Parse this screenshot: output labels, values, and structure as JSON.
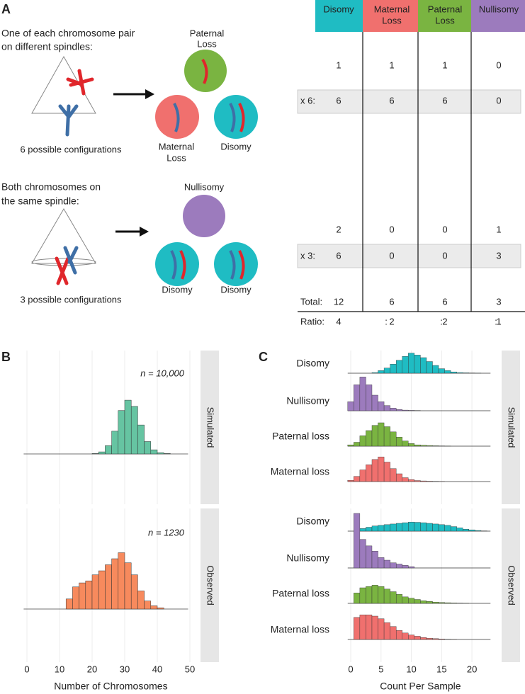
{
  "diagram": {
    "panel_label": "A",
    "row1_text": [
      "One of each chromosome pair",
      "on different spindles:"
    ],
    "row1_configs": "6 possible configurations",
    "row1_circles": [
      [
        "Paternal",
        "Loss"
      ],
      [
        "Maternal",
        "Loss"
      ],
      [
        "Disomy"
      ]
    ],
    "row2_text": [
      "Both chromosomes on",
      "the same spindle:"
    ],
    "row2_configs": "3 possible configurations",
    "row2_circles": [
      [
        "Nullisomy"
      ],
      [
        "Disomy"
      ],
      [
        "Disomy"
      ]
    ]
  },
  "table": {
    "headers": [
      [
        "Disomy"
      ],
      [
        "Maternal",
        "Loss"
      ],
      [
        "Paternal",
        "Loss"
      ],
      [
        "Nullisomy"
      ]
    ],
    "header_colors": [
      "#1fbcc3",
      "#f0706e",
      "#7ab441",
      "#9c7bbd"
    ],
    "rows": [
      [
        null,
        1,
        1,
        1,
        0
      ],
      [
        "x 6:",
        6,
        6,
        6,
        0
      ],
      [
        null,
        2,
        0,
        0,
        1
      ],
      [
        "x 3:",
        6,
        0,
        0,
        3
      ],
      [
        "Total:",
        12,
        6,
        6,
        3
      ],
      [
        "Ratio:",
        4,
        2,
        2,
        1
      ]
    ],
    "ratio_separator": ":"
  },
  "chart_data": [
    {
      "type": "histogram",
      "panel_label": "B",
      "xlabel": "Number of Chromosomes",
      "xlim": [
        -1,
        52.5
      ],
      "xticks": [
        0,
        10,
        20,
        30,
        40,
        50
      ],
      "grid": true,
      "facets": [
        {
          "label": "Simulated",
          "annotation": "n = 10,000",
          "color": "#66c4a2",
          "ylim": [
            0,
            5000
          ],
          "bins": [
            20,
            22,
            24,
            26,
            28,
            30,
            32,
            34,
            36,
            38,
            40,
            42,
            44
          ],
          "values": [
            20,
            100,
            400,
            1100,
            2100,
            2600,
            2300,
            1400,
            600,
            200,
            60,
            20
          ]
        },
        {
          "label": "Observed",
          "annotation": "n = 1230",
          "color": "#f78a5d",
          "ylim": [
            0,
            250
          ],
          "bins": [
            12,
            14,
            16,
            18,
            20,
            22,
            24,
            26,
            28,
            30,
            32,
            34,
            36,
            38,
            40,
            42
          ],
          "values": [
            25,
            55,
            65,
            70,
            85,
            95,
            110,
            125,
            140,
            115,
            85,
            45,
            20,
            8,
            3
          ]
        }
      ]
    },
    {
      "type": "ridgeline",
      "panel_label": "C",
      "xlabel": "Count Per Sample",
      "xlim": [
        -1,
        24
      ],
      "xticks": [
        0,
        5,
        10,
        15,
        20
      ],
      "ylim": [
        0,
        0.3
      ],
      "grid": true,
      "bins": [
        -0.5,
        0.5,
        1.5,
        2.5,
        3.5,
        4.5,
        5.5,
        6.5,
        7.5,
        8.5,
        9.5,
        10.5,
        11.5,
        12.5,
        13.5,
        14.5,
        15.5,
        16.5,
        17.5,
        18.5,
        19.5,
        20.5,
        21.5,
        22.5
      ],
      "facets": [
        {
          "label": "Simulated",
          "series": [
            {
              "name": "Disomy",
              "color": "#1fbcc3",
              "values": [
                0,
                0,
                0,
                0,
                0.005,
                0.02,
                0.04,
                0.07,
                0.1,
                0.13,
                0.155,
                0.14,
                0.12,
                0.09,
                0.06,
                0.035,
                0.02,
                0.01,
                0.005,
                0.003,
                0.002,
                0.001,
                0
              ]
            },
            {
              "name": "Nullisomy",
              "color": "#9c7bbd",
              "values": [
                0.07,
                0.2,
                0.26,
                0.2,
                0.12,
                0.07,
                0.04,
                0.02,
                0.01,
                0.005,
                0.003,
                0.002,
                0,
                0,
                0,
                0,
                0,
                0,
                0,
                0,
                0,
                0,
                0
              ]
            },
            {
              "name": "Paternal loss",
              "color": "#7ab441",
              "values": [
                0.01,
                0.03,
                0.08,
                0.12,
                0.16,
                0.18,
                0.15,
                0.11,
                0.07,
                0.04,
                0.02,
                0.01,
                0.007,
                0.005,
                0.003,
                0.002,
                0.001,
                0,
                0,
                0,
                0,
                0,
                0
              ]
            },
            {
              "name": "Maternal loss",
              "color": "#f0706e",
              "values": [
                0.01,
                0.04,
                0.09,
                0.13,
                0.17,
                0.19,
                0.15,
                0.1,
                0.06,
                0.03,
                0.015,
                0.008,
                0.005,
                0.003,
                0.002,
                0.001,
                0,
                0,
                0,
                0,
                0,
                0,
                0
              ]
            }
          ]
        },
        {
          "label": "Observed",
          "series": [
            {
              "name": "Disomy",
              "color": "#1fbcc3",
              "values": [
                0,
                0,
                0.02,
                0.03,
                0.04,
                0.045,
                0.05,
                0.055,
                0.06,
                0.065,
                0.07,
                0.068,
                0.065,
                0.06,
                0.055,
                0.05,
                0.045,
                0.035,
                0.025,
                0.015,
                0.01,
                0.005,
                0.002
              ]
            },
            {
              "name": "Nullisomy",
              "color": "#9c7bbd",
              "values": [
                0,
                0.42,
                0.22,
                0.17,
                0.13,
                0.08,
                0.06,
                0.04,
                0.03,
                0.02,
                0.01,
                0,
                0,
                0,
                0,
                0,
                0,
                0,
                0,
                0,
                0,
                0,
                0
              ]
            },
            {
              "name": "Paternal loss",
              "color": "#7ab441",
              "values": [
                0,
                0.08,
                0.12,
                0.13,
                0.14,
                0.13,
                0.11,
                0.09,
                0.07,
                0.05,
                0.04,
                0.03,
                0.02,
                0.015,
                0.01,
                0.007,
                0.005,
                0.003,
                0.002,
                0.001,
                0,
                0,
                0
              ]
            },
            {
              "name": "Maternal loss",
              "color": "#f0706e",
              "values": [
                0,
                0.17,
                0.19,
                0.19,
                0.18,
                0.16,
                0.13,
                0.1,
                0.07,
                0.05,
                0.035,
                0.025,
                0.015,
                0.01,
                0.007,
                0.004,
                0.002,
                0.001,
                0,
                0,
                0,
                0,
                0
              ]
            }
          ]
        }
      ]
    }
  ]
}
